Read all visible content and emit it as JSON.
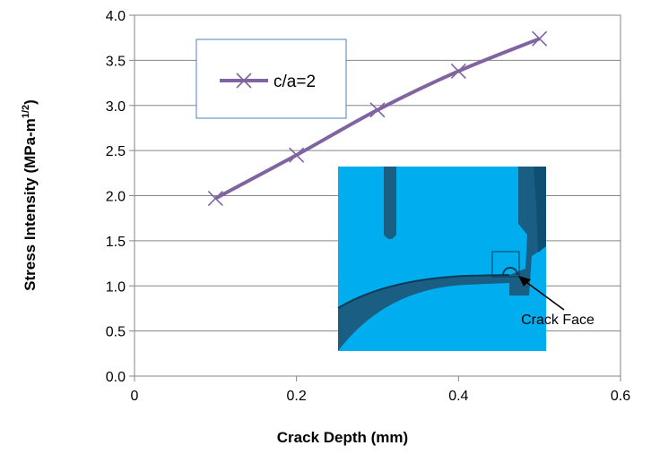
{
  "chart_data": {
    "type": "line",
    "title": "",
    "xlabel": "Crack Depth (mm)",
    "ylabel": "Stress Intensity (MPa-m",
    "ylabel_sup": "1/2",
    "ylabel_close": ")",
    "xlim": [
      0,
      0.6
    ],
    "ylim": [
      0,
      4.0
    ],
    "x_ticks": [
      "0",
      "0.2",
      "0.4",
      "0.6"
    ],
    "y_ticks": [
      "0.0",
      "0.5",
      "1.0",
      "1.5",
      "2.0",
      "2.5",
      "3.0",
      "3.5",
      "4.0"
    ],
    "grid": "horizontal",
    "legend_placement": "top-left",
    "series": [
      {
        "name": "c/a=2",
        "color": "#8064a2",
        "marker": "x",
        "x": [
          0.1,
          0.2,
          0.3,
          0.4,
          0.5
        ],
        "y": [
          1.97,
          2.45,
          2.95,
          3.38,
          3.74
        ]
      }
    ],
    "inset": {
      "annotation": "Crack Face",
      "colors": {
        "background": "#00aeef",
        "part": "#1a5e84",
        "edge": "#0b3a55",
        "deep": "#0f4f74"
      }
    }
  }
}
